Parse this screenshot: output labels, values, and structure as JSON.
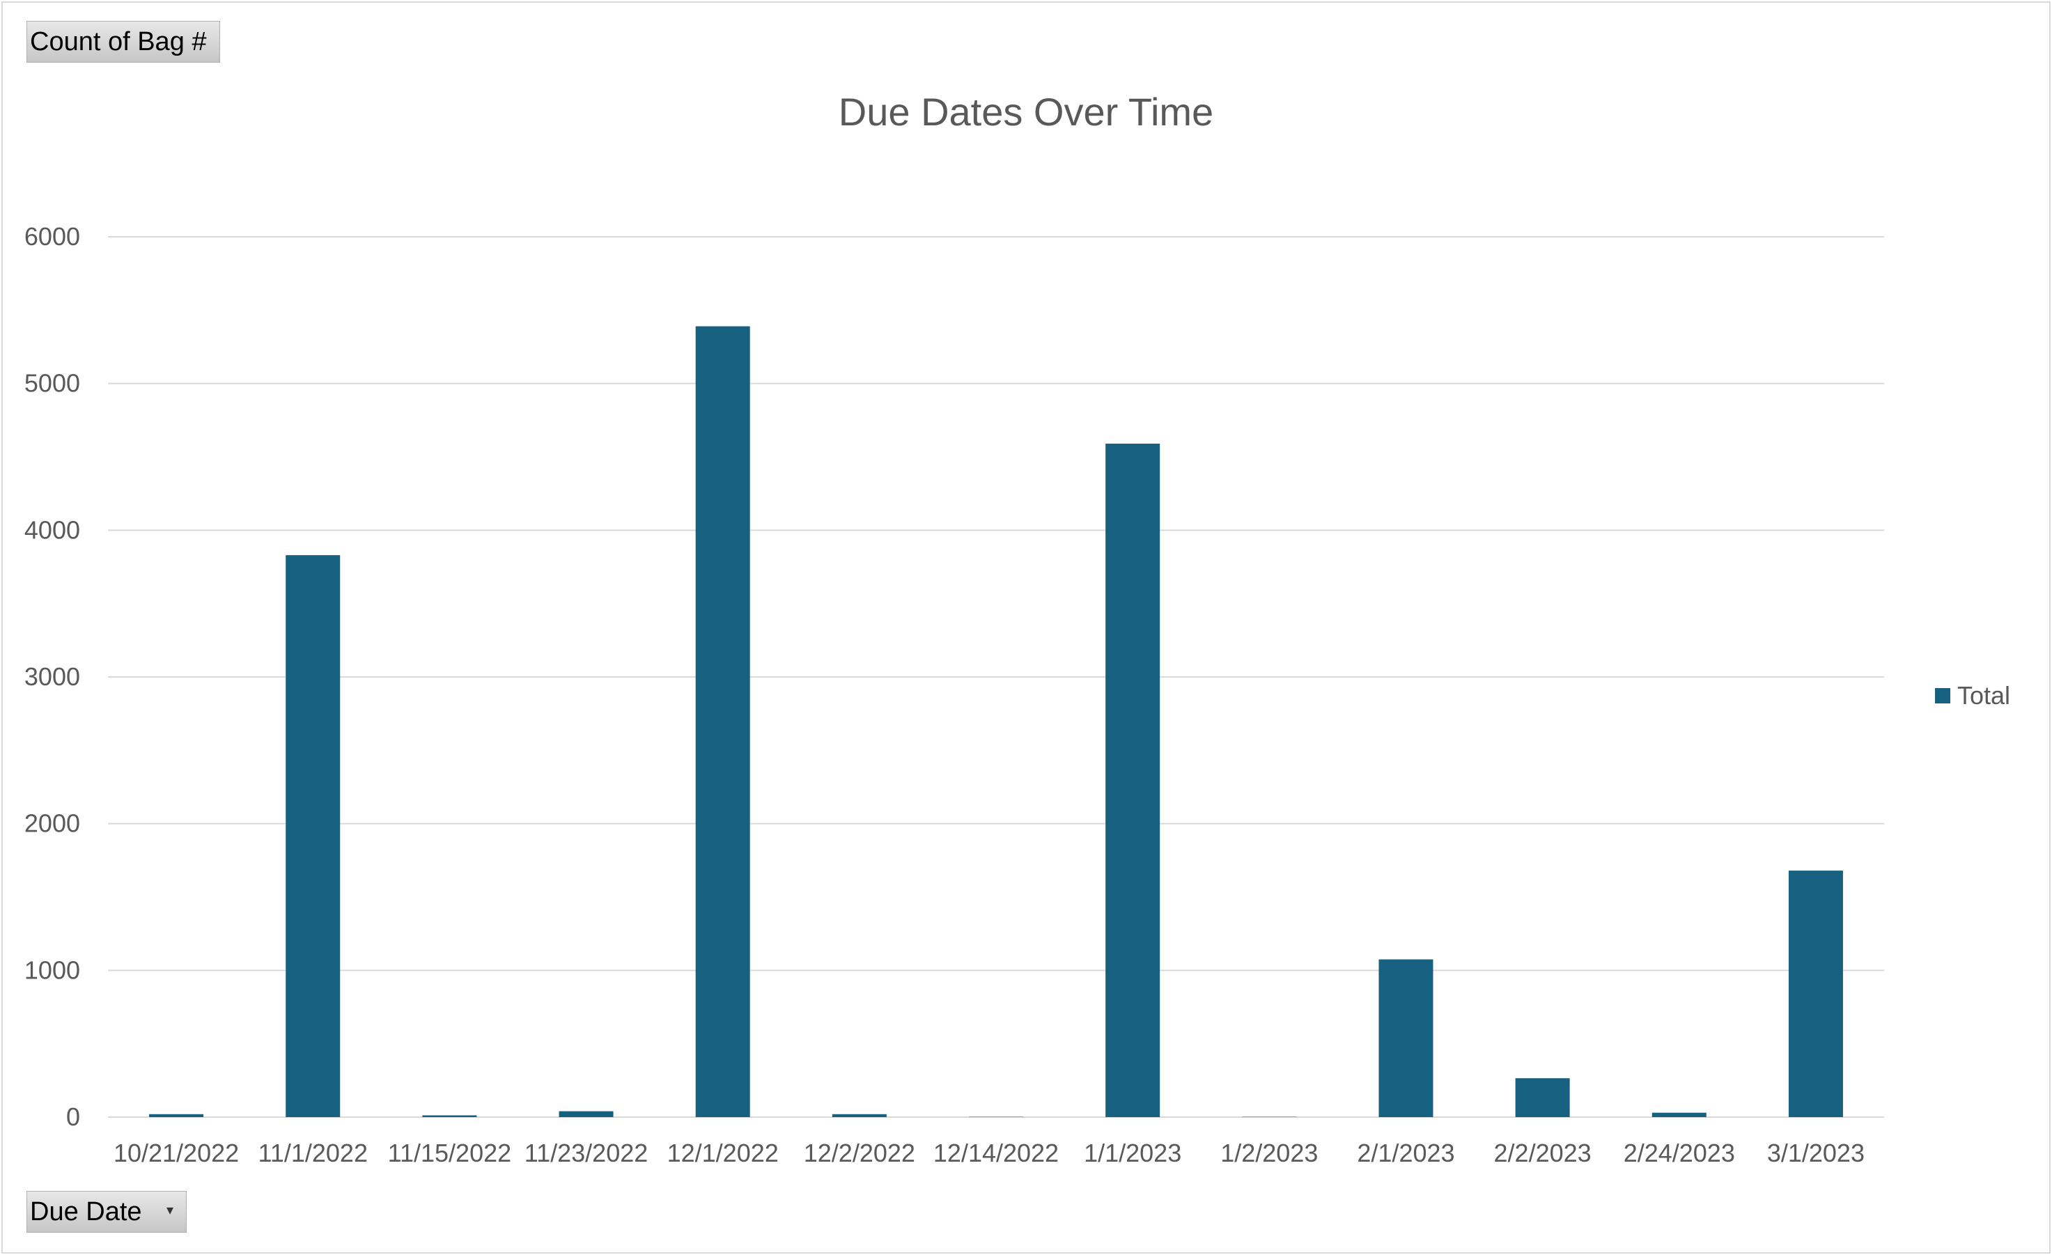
{
  "value_field_button": {
    "label": "Count of Bag #"
  },
  "axis_field_button": {
    "label": "Due Date",
    "dropdown_glyph": "▾"
  },
  "colors": {
    "bar": "#17607f",
    "grid": "#d9d9d9",
    "text": "#595959"
  },
  "chart_data": {
    "type": "bar",
    "title": "Due Dates Over Time",
    "xlabel": "",
    "ylabel": "",
    "ylim": [
      0,
      6000
    ],
    "yticks": [
      "0",
      "1000",
      "2000",
      "3000",
      "4000",
      "5000",
      "6000"
    ],
    "grid": true,
    "legend_position": "right",
    "categories": [
      "10/21/2022",
      "11/1/2022",
      "11/15/2022",
      "11/23/2022",
      "12/1/2022",
      "12/2/2022",
      "12/14/2022",
      "1/1/2023",
      "1/2/2023",
      "2/1/2023",
      "2/2/2023",
      "2/24/2023",
      "3/1/2023"
    ],
    "series": [
      {
        "name": "Total",
        "values": [
          20,
          3830,
          12,
          40,
          5390,
          20,
          2,
          4590,
          2,
          1075,
          265,
          30,
          1680
        ]
      }
    ]
  }
}
